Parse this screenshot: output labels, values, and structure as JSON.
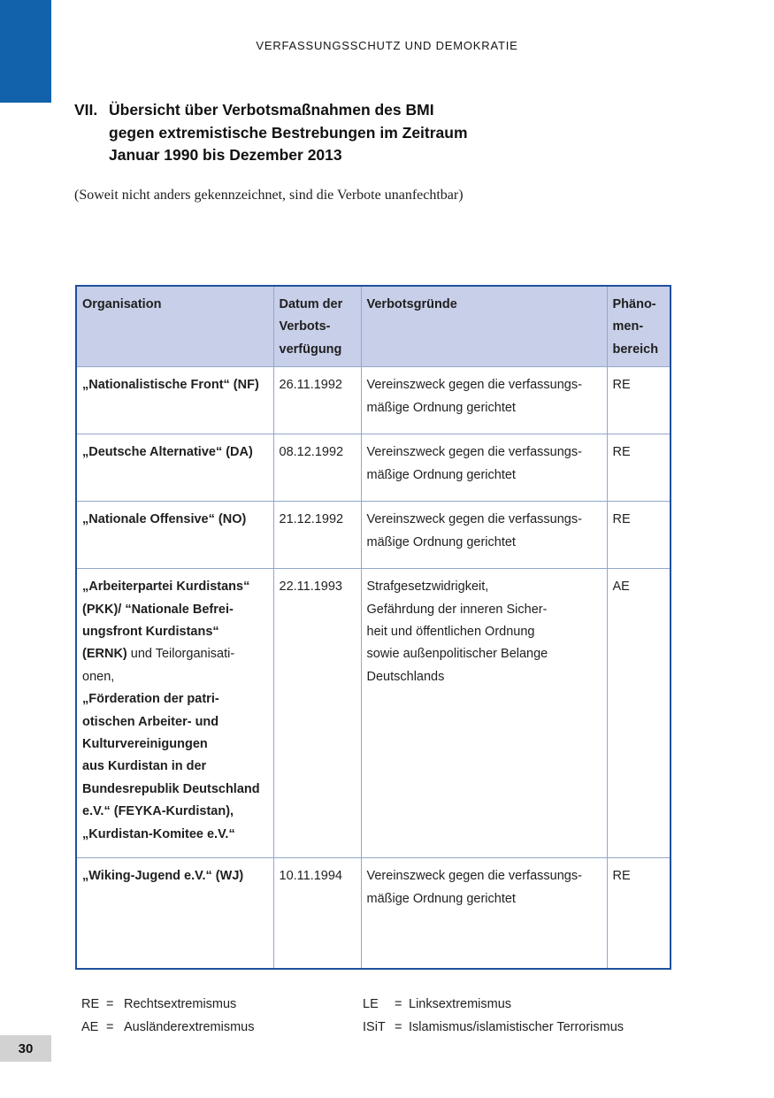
{
  "page": {
    "running_head": "VERFASSUNGSSCHUTZ UND DEMOKRATIE",
    "title_number": "VII.",
    "title_lines": [
      "Übersicht über Verbotsmaßnahmen des BMI",
      "gegen extremistische Bestrebungen im Zeitraum",
      "Januar 1990 bis Dezember 2013"
    ],
    "subtitle": "(Soweit nicht anders gekennzeichnet, sind die Verbote unanfechtbar)",
    "page_number": "30"
  },
  "colors": {
    "accent_blue": "#1161ab",
    "table_border": "#20509e",
    "table_grid": "#92a7cd",
    "header_fill": "#c8cfe9",
    "page_number_bg": "#d2d2d2"
  },
  "table": {
    "headers": [
      {
        "lines": [
          "Organisation"
        ]
      },
      {
        "lines": [
          "Datum der",
          "Verbots-",
          "verfügung"
        ]
      },
      {
        "lines": [
          "Verbotsgründe"
        ]
      },
      {
        "lines": [
          "Phäno-",
          "men-",
          "bereich"
        ]
      }
    ],
    "rows": [
      {
        "organisation_lines": [
          {
            "segments": [
              {
                "text": "„Nationalistische Front“ (NF)",
                "bold": true
              }
            ]
          }
        ],
        "date": "26.11.1992",
        "reasons_lines": [
          "Vereinszweck gegen die verfassungs-",
          "mäßige Ordnung gerichtet"
        ],
        "area": "RE"
      },
      {
        "organisation_lines": [
          {
            "segments": [
              {
                "text": "„Deutsche Alternative“ (DA)",
                "bold": true
              }
            ]
          }
        ],
        "date": "08.12.1992",
        "reasons_lines": [
          "Vereinszweck gegen die verfassungs-",
          "mäßige Ordnung gerichtet"
        ],
        "area": "RE"
      },
      {
        "organisation_lines": [
          {
            "segments": [
              {
                "text": "„Nationale Offensive“ (NO)",
                "bold": true
              }
            ]
          }
        ],
        "date": "21.12.1992",
        "reasons_lines": [
          "Vereinszweck gegen die verfassungs-",
          "mäßige Ordnung gerichtet"
        ],
        "area": "RE"
      },
      {
        "organisation_lines": [
          {
            "segments": [
              {
                "text": "„Arbeiterpartei Kurdistans“",
                "bold": true
              }
            ]
          },
          {
            "segments": [
              {
                "text": "(PKK)/ “Nationale Befrei-",
                "bold": true
              }
            ]
          },
          {
            "segments": [
              {
                "text": "ungsfront Kurdistans“",
                "bold": true
              }
            ]
          },
          {
            "segments": [
              {
                "text": "(ERNK)",
                "bold": true
              },
              {
                "text": " und Teilorganisati-",
                "bold": false
              }
            ]
          },
          {
            "segments": [
              {
                "text": "onen,",
                "bold": false
              }
            ]
          },
          {
            "segments": [
              {
                "text": "„Förderation der patri-",
                "bold": true
              }
            ]
          },
          {
            "segments": [
              {
                "text": "otischen Arbeiter- und",
                "bold": true
              }
            ]
          },
          {
            "segments": [
              {
                "text": "Kulturvereinigungen",
                "bold": true
              }
            ]
          },
          {
            "segments": [
              {
                "text": "aus Kurdistan in der",
                "bold": true
              }
            ]
          },
          {
            "segments": [
              {
                "text": "Bundesrepublik Deutschland",
                "bold": true
              }
            ]
          },
          {
            "segments": [
              {
                "text": "e.V.“ (FEYKA-Kurdistan),",
                "bold": true
              }
            ]
          },
          {
            "segments": [
              {
                "text": "„Kurdistan-Komitee e.V.“",
                "bold": true
              }
            ]
          }
        ],
        "date": "22.11.1993",
        "reasons_lines": [
          "Strafgesetzwidrigkeit,",
          "Gefährdung der inneren Sicher-",
          "heit und öffentlichen Ordnung",
          "sowie außenpolitischer Belange",
          "Deutschlands"
        ],
        "area": "AE"
      },
      {
        "organisation_lines": [
          {
            "segments": [
              {
                "text": "„Wiking-Jugend e.V.“ (WJ)",
                "bold": true
              }
            ]
          }
        ],
        "date": "10.11.1994",
        "reasons_lines": [
          "Vereinszweck gegen die verfassungs-",
          "mäßige Ordnung gerichtet"
        ],
        "area": "RE"
      }
    ]
  },
  "legend": {
    "items": [
      {
        "abbr": "RE",
        "eq": "=",
        "label": "Rechtsextremismus",
        "column": "left"
      },
      {
        "abbr": "LE",
        "eq": "=",
        "label": "Linksextremismus",
        "column": "right"
      },
      {
        "abbr": "AE",
        "eq": "=",
        "label": "Ausländerextremismus",
        "column": "left"
      },
      {
        "abbr": "ISiT",
        "eq": "=",
        "label": "Islamismus/islamistischer Terrorismus",
        "column": "right"
      }
    ]
  }
}
